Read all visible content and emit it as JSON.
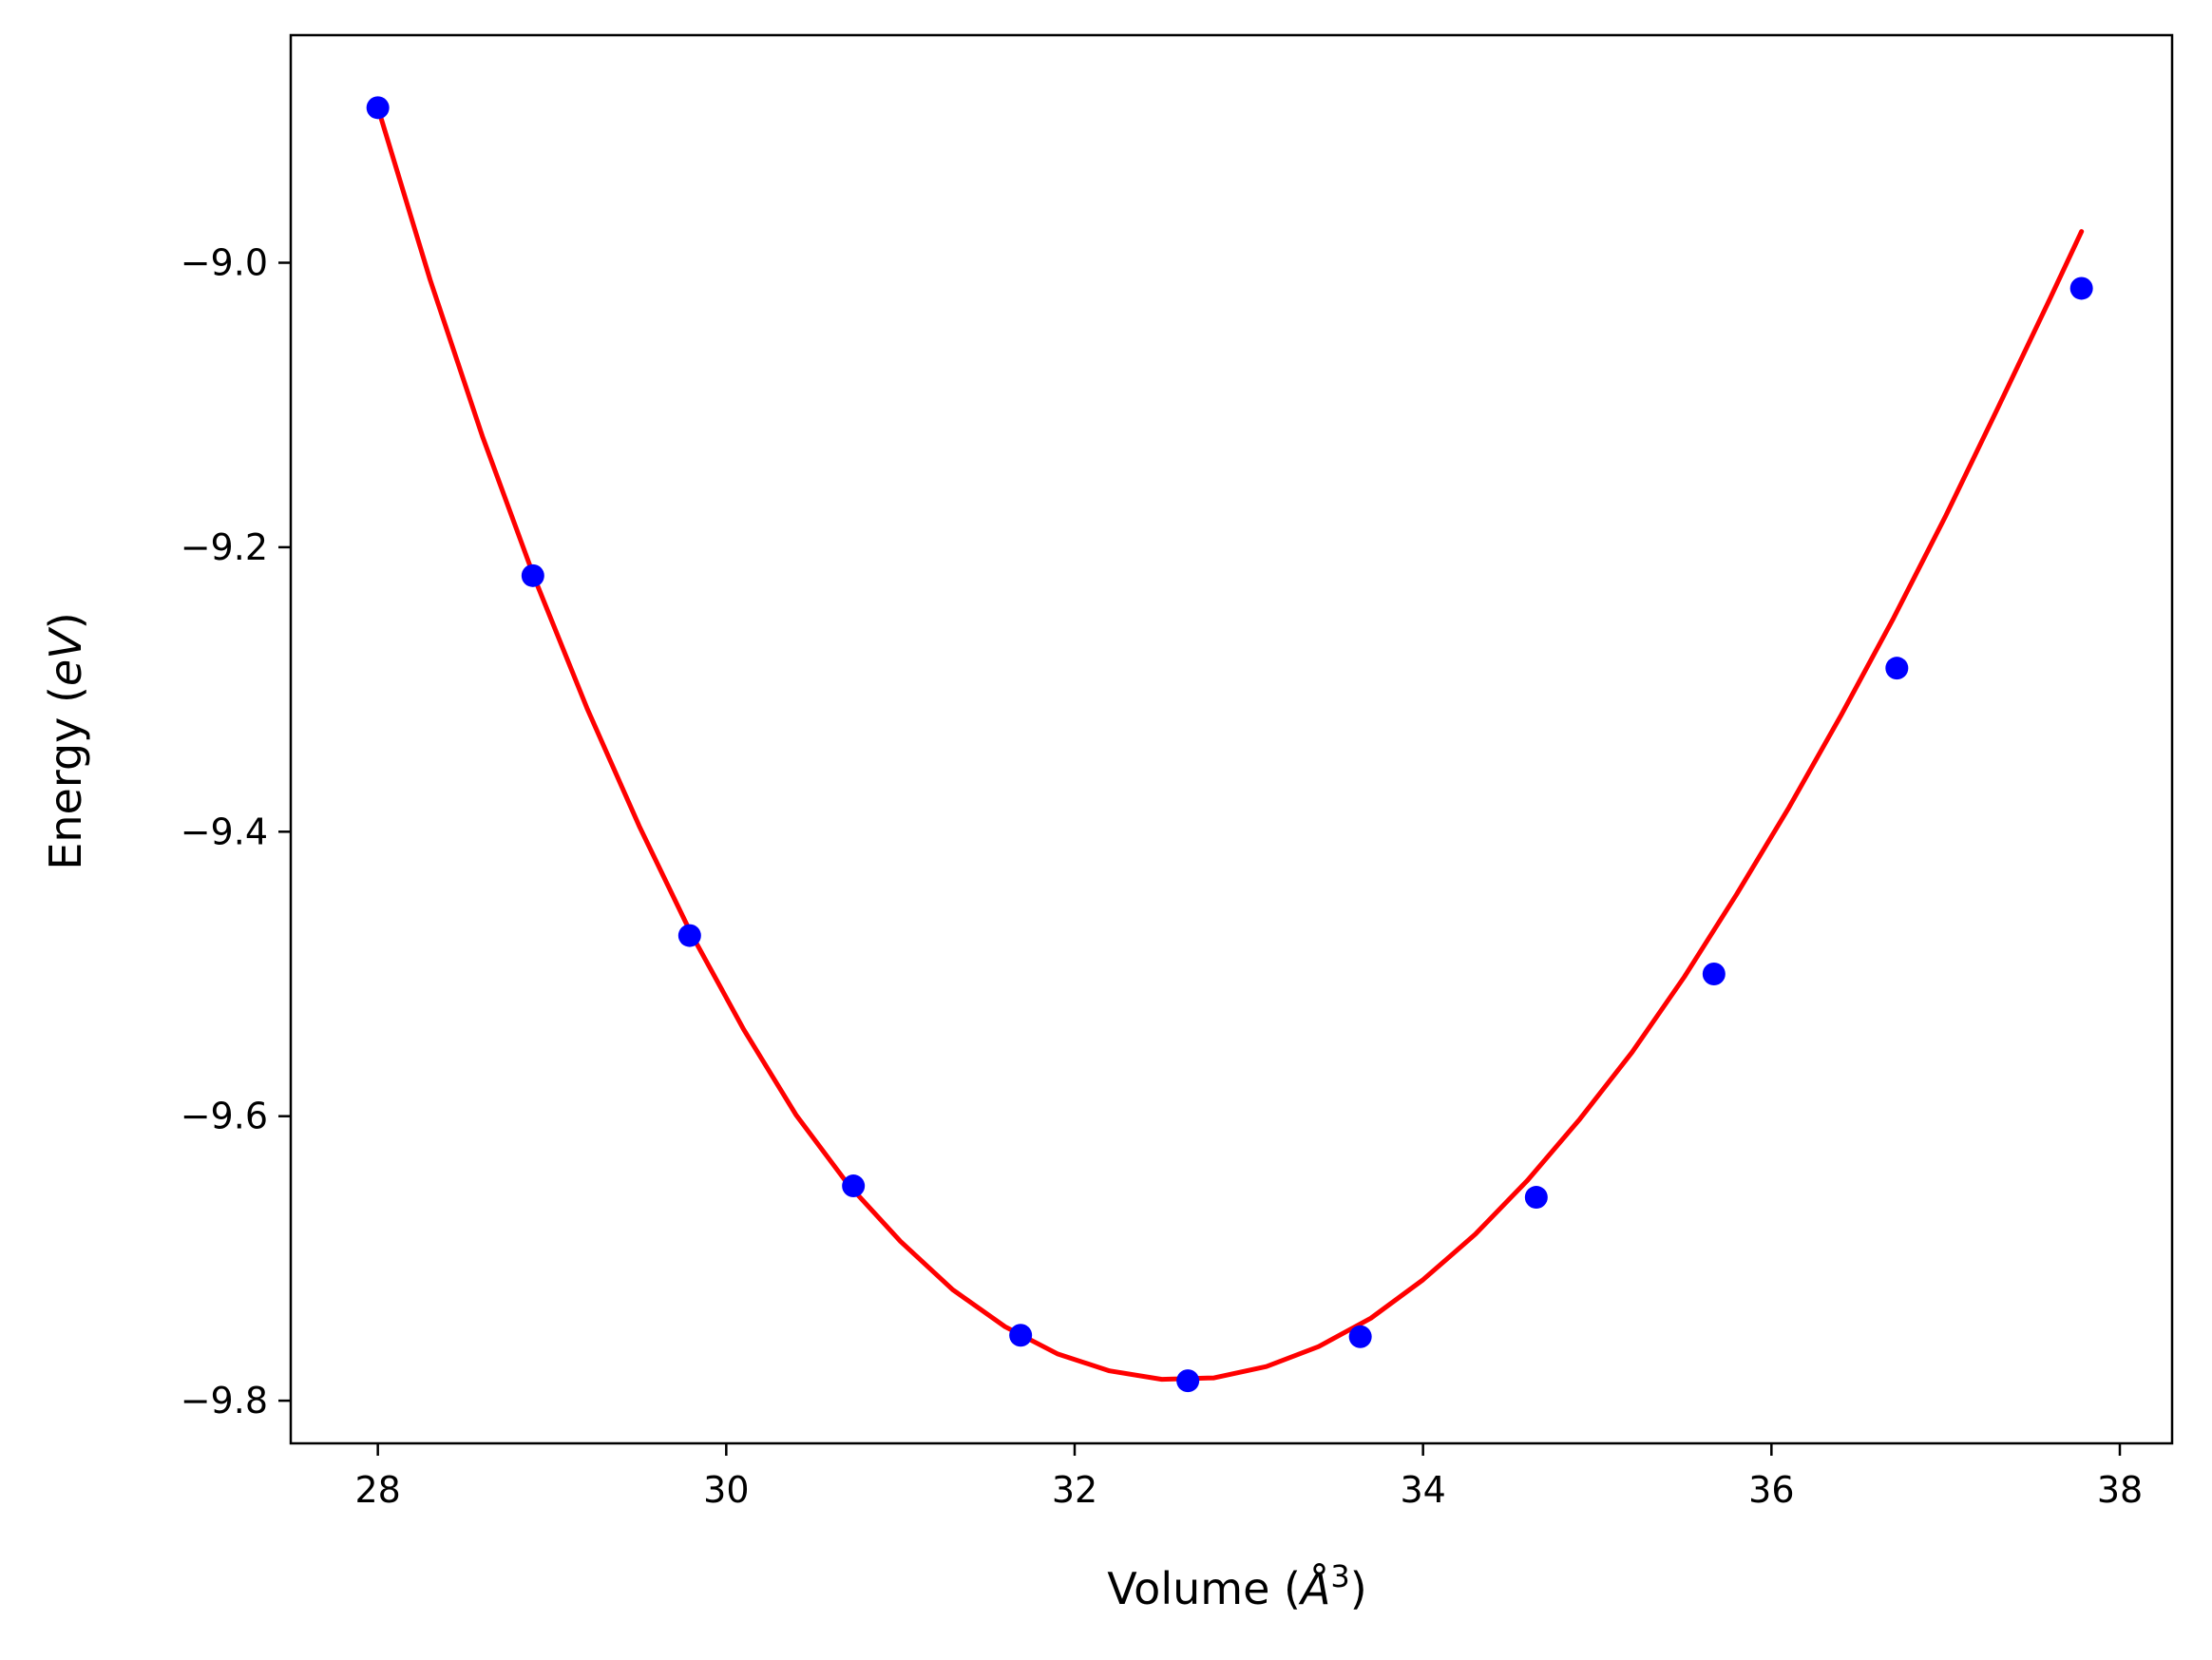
{
  "chart_data": {
    "type": "scatter",
    "xlabel": {
      "prefix": "Volume (",
      "symbol": "Å",
      "exponent": "3",
      "suffix": ")"
    },
    "ylabel": {
      "prefix": "Energy (",
      "symbol": "eV",
      "suffix": ")"
    },
    "xlim": [
      27.5,
      38.3
    ],
    "ylim": [
      -9.83,
      -8.84
    ],
    "x_ticks": [
      28,
      30,
      32,
      34,
      36,
      38
    ],
    "x_tick_labels": [
      "28",
      "30",
      "32",
      "34",
      "36",
      "38"
    ],
    "y_ticks": [
      -9.8,
      -9.6,
      -9.4,
      -9.2,
      -9.0
    ],
    "y_tick_labels": [
      "−9.8",
      "−9.6",
      "−9.4",
      "−9.2",
      "−9.0"
    ],
    "grid": false,
    "legend": "none",
    "series": [
      {
        "kind": "points",
        "color": "#0000ff",
        "x": [
          28.0,
          28.89,
          29.79,
          30.73,
          31.69,
          32.65,
          33.64,
          34.65,
          35.67,
          36.72,
          37.78
        ],
        "y": [
          -8.891,
          -9.22,
          -9.473,
          -9.649,
          -9.754,
          -9.786,
          -9.755,
          -9.657,
          -9.5,
          -9.285,
          -9.018
        ]
      },
      {
        "kind": "fit-curve",
        "color": "#ff0000",
        "x": [
          28.0,
          28.3,
          28.6,
          28.9,
          29.2,
          29.5,
          29.8,
          30.1,
          30.4,
          30.7,
          31.0,
          31.3,
          31.6,
          31.9,
          32.2,
          32.5,
          32.8,
          33.1,
          33.4,
          33.7,
          34.0,
          34.3,
          34.6,
          34.9,
          35.2,
          35.5,
          35.8,
          36.1,
          36.4,
          36.7,
          37.0,
          37.3,
          37.6,
          37.78
        ],
        "y": [
          -8.891,
          -9.012,
          -9.122,
          -9.222,
          -9.313,
          -9.396,
          -9.472,
          -9.539,
          -9.599,
          -9.648,
          -9.688,
          -9.722,
          -9.748,
          -9.767,
          -9.779,
          -9.785,
          -9.784,
          -9.776,
          -9.762,
          -9.742,
          -9.715,
          -9.683,
          -9.645,
          -9.602,
          -9.555,
          -9.502,
          -9.444,
          -9.383,
          -9.318,
          -9.25,
          -9.178,
          -9.102,
          -9.025,
          -8.978
        ]
      }
    ]
  }
}
